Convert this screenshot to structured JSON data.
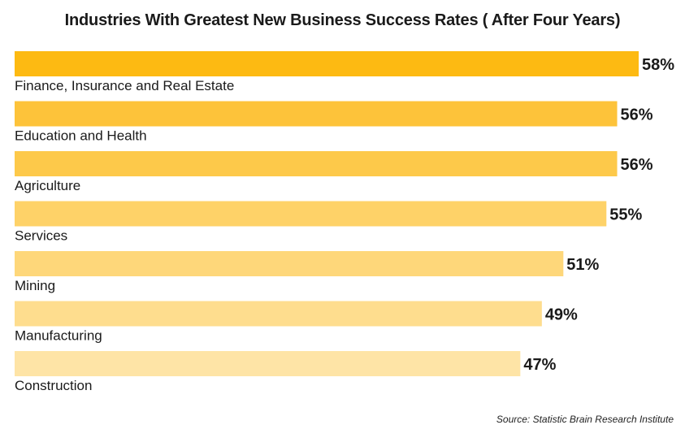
{
  "chart_data": {
    "type": "bar",
    "orientation": "horizontal",
    "title": "Industries With Greatest New Business Success Rates ( After Four Years)",
    "categories": [
      "Finance, Insurance and Real Estate",
      "Education and Health",
      "Agriculture",
      "Services",
      "Mining",
      "Manufacturing",
      "Construction"
    ],
    "values": [
      58,
      56,
      56,
      55,
      51,
      49,
      47
    ],
    "value_labels": [
      "58%",
      "56%",
      "56%",
      "55%",
      "51%",
      "49%",
      "47%"
    ],
    "unit": "%",
    "xlim": [
      0,
      58
    ],
    "grid": false,
    "legend": "none",
    "colors": [
      "#FDBA12",
      "#FDC33A",
      "#FDC94A",
      "#FED268",
      "#FED77A",
      "#FEDD8E",
      "#FEE4A6"
    ]
  },
  "source": "Source: Statistic Brain Research Institute"
}
